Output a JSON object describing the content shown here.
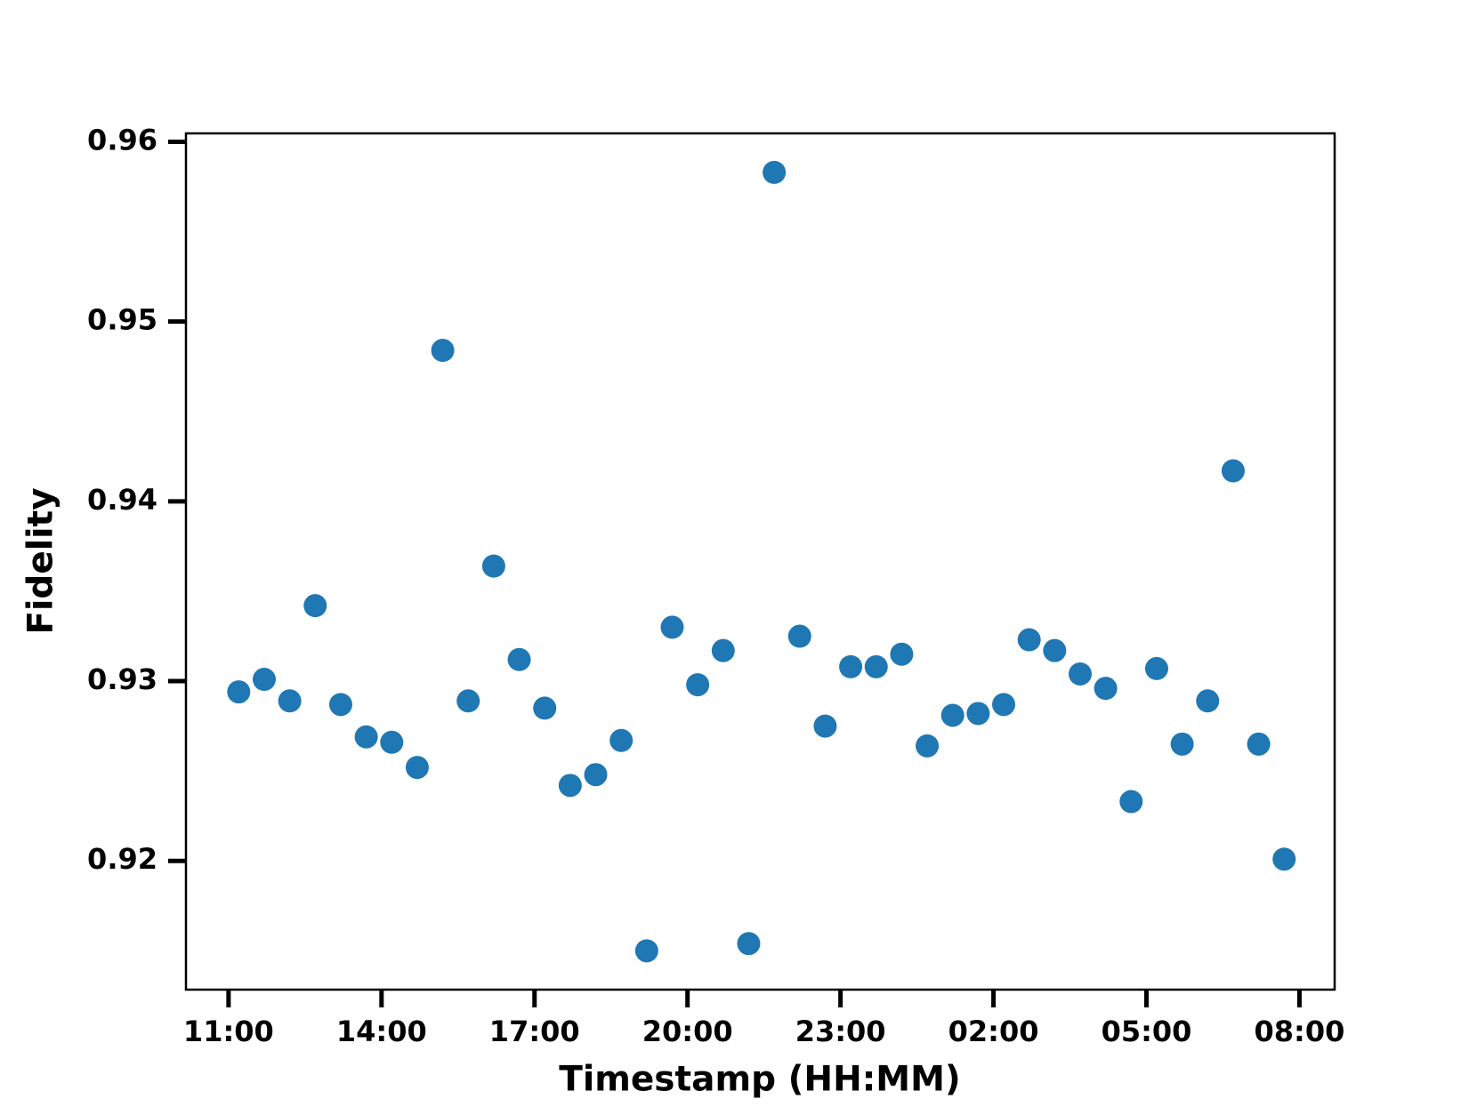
{
  "chart_data": {
    "type": "scatter",
    "x_label": "Timestamp (HH:MM)",
    "y_label": "Fidelity",
    "color": "#1f77b4",
    "x": [
      11.2,
      11.7,
      12.2,
      12.7,
      13.2,
      13.7,
      14.2,
      14.7,
      15.2,
      15.7,
      16.2,
      16.7,
      17.2,
      17.7,
      18.2,
      18.7,
      19.2,
      19.7,
      20.2,
      20.7,
      21.2,
      21.7,
      22.2,
      22.7,
      23.2,
      23.7,
      24.2,
      24.7,
      25.2,
      25.7,
      26.2,
      26.7,
      27.2,
      27.7,
      28.2,
      28.7,
      29.2,
      29.7,
      30.2,
      30.7,
      31.2,
      31.7
    ],
    "values": [
      0.9294,
      0.9301,
      0.9289,
      0.9342,
      0.9287,
      0.9269,
      0.9266,
      0.9252,
      0.9484,
      0.9289,
      0.9364,
      0.9312,
      0.9285,
      0.9242,
      0.9248,
      0.9267,
      0.915,
      0.933,
      0.9298,
      0.9317,
      0.9154,
      0.9583,
      0.9325,
      0.9275,
      0.9308,
      0.9308,
      0.9315,
      0.9264,
      0.9281,
      0.9282,
      0.9287,
      0.9323,
      0.9317,
      0.9304,
      0.9296,
      0.9233,
      0.9307,
      0.9265,
      0.9289,
      0.9417,
      0.9265,
      0.9201
    ],
    "xlim": [
      10.165,
      32.69
    ],
    "xticks": [
      {
        "value": 11,
        "label": "11:00"
      },
      {
        "value": 14,
        "label": "14:00"
      },
      {
        "value": 17,
        "label": "17:00"
      },
      {
        "value": 20,
        "label": "20:00"
      },
      {
        "value": 23,
        "label": "23:00"
      },
      {
        "value": 26,
        "label": "02:00"
      },
      {
        "value": 29,
        "label": "05:00"
      },
      {
        "value": 32,
        "label": "08:00"
      }
    ],
    "ylim": [
      0.91284,
      0.96047
    ],
    "yticks": [
      0.92,
      0.93,
      0.94,
      0.95,
      0.96
    ]
  }
}
